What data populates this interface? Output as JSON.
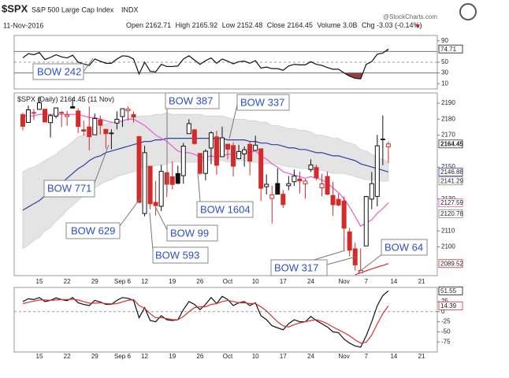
{
  "header": {
    "symbol": "$SPX",
    "name": "S&P 500 Large Cap Index",
    "exchange": "INDX",
    "source": "@StockCharts.com",
    "date": "11-Nov-2016",
    "open_label": "Open",
    "high_label": "High",
    "low_label": "Low",
    "close_label": "Close",
    "volume_label": "Volume",
    "volume": "3.0B",
    "chg_label": "Chg",
    "chg": -3.03,
    "chg_pct": "(-0.14%)"
  },
  "annotations": [
    "BOW 242",
    "BOW 771",
    "BOW 629",
    "BOW 387",
    "BOW 337",
    "BOW 1604",
    "BOW 99",
    "BOW 593",
    "BOW 317",
    "BOW 64"
  ],
  "chart_data": [
    {
      "type": "line",
      "ylim": [
        0,
        100
      ],
      "yticks": [
        10,
        30,
        50,
        90
      ],
      "ref_lines": [
        30,
        70
      ],
      "dashed_lines": [
        50
      ],
      "over_color": "#55a055",
      "under_color": "#8b2a2a",
      "series": [
        {
          "color": "#111111",
          "end_label": true,
          "values": [
            58,
            66,
            64,
            68,
            55,
            59,
            64,
            60,
            58,
            63,
            50,
            47,
            44,
            56,
            52,
            48,
            48,
            56,
            62,
            61,
            56,
            28,
            50,
            33,
            32,
            46,
            42,
            42,
            43,
            56,
            62,
            54,
            46,
            53,
            58,
            48,
            56,
            52,
            47,
            51,
            52,
            48,
            53,
            39,
            41,
            38,
            38,
            35,
            43,
            46,
            45,
            45,
            51,
            46,
            44,
            40,
            37,
            37,
            30,
            24,
            20,
            19,
            46,
            51,
            65,
            67,
            74.71
          ]
        }
      ]
    },
    {
      "type": "candlestick",
      "legend_symbol": "$SPX (Daily)",
      "legend_date": "(11 Nov)",
      "ylim": [
        2082,
        2196.4
      ],
      "yticks": [
        2100,
        2110,
        2130,
        2150,
        2170,
        2180,
        2190
      ],
      "up_color": "#111111",
      "down_color": "#d42a2a",
      "levels": [
        2120.78
      ],
      "categories": [
        null,
        null,
        null,
        "15",
        null,
        null,
        null,
        null,
        "22",
        null,
        null,
        null,
        null,
        "29",
        null,
        null,
        null,
        null,
        "Sep 6",
        null,
        null,
        null,
        "12",
        null,
        null,
        null,
        null,
        "19",
        null,
        null,
        null,
        null,
        "26",
        null,
        null,
        null,
        null,
        "Oct",
        null,
        null,
        null,
        null,
        "10",
        null,
        null,
        null,
        null,
        "17",
        null,
        null,
        null,
        null,
        "24",
        null,
        null,
        null,
        null,
        null,
        "Nov",
        null,
        null,
        null,
        "7",
        null,
        null,
        null,
        null,
        "14",
        null,
        null,
        null,
        null,
        "21",
        null,
        null
      ],
      "open": [
        2182.8,
        2177.9,
        2183.7,
        2186.1,
        2186.2,
        2177.8,
        2181.9,
        2184.2,
        2181.6,
        2187.8,
        2185.1,
        2173.3,
        2175.1,
        2170.2,
        2179.5,
        2173.6,
        2171.3,
        2177.5,
        2181.6,
        2185.2,
        2182.8,
        2169.1,
        2120.9,
        2150.5,
        2127.9,
        2125.4,
        2146.5,
        2143.9,
        2145.9,
        2144.6,
        2170.9,
        2173.3,
        2158.5,
        2146,
        2161.9,
        2168.9,
        2156.5,
        2164.3,
        2163.4,
        2155.2,
        2158.2,
        2164.2,
        2160.4,
        2161.4,
        2137.7,
        2130.3,
        2139.7,
        2132.95,
        2138.3,
        2140.8,
        2142.5,
        2139.4,
        2148.5,
        2149.7,
        2136.97,
        2144.1,
        2132.2,
        2129.8,
        2128.7,
        2109.4,
        2098.8,
        2083.8,
        2100.6,
        2129.9,
        2131.6,
        2167.5,
        2162.71,
        null,
        null,
        null,
        null,
        null,
        null,
        null,
        null
      ],
      "high": [
        2184,
        2188.5,
        2186.3,
        2193.8,
        2186.2,
        2183.1,
        2187,
        2185,
        2185.2,
        2193.4,
        2186.7,
        2179,
        2187.9,
        2183.5,
        2182.3,
        2173.8,
        2173.6,
        2184.9,
        2186.6,
        2187.9,
        2184.9,
        2169.1,
        2163.3,
        2150.5,
        2141.3,
        2151.3,
        2146.5,
        2153.6,
        2150.8,
        2165.1,
        2180,
        2173.8,
        2158.5,
        2161.1,
        2172.4,
        2172.7,
        2175.3,
        2164.4,
        2165.5,
        2163.9,
        2162.9,
        2165.9,
        2169.6,
        2161.6,
        2145.4,
        2138.2,
        2149.2,
        2135.6,
        2144.4,
        2148.4,
        2147.2,
        2142.6,
        2154.8,
        2151.4,
        2145.7,
        2147.1,
        2140.7,
        2133.3,
        2131.5,
        2111.8,
        2102.6,
        2099.1,
        2132,
        2146.9,
        2170.1,
        2182.3,
        2165.92,
        null,
        null,
        null,
        null,
        null,
        null,
        null,
        null
      ],
      "low": [
        2173,
        2177.9,
        2179.4,
        2186.1,
        2178.1,
        2168.5,
        2180.5,
        2175.1,
        2175.9,
        2186.8,
        2171.3,
        2169.7,
        2160.4,
        2170.2,
        2170.4,
        2161.4,
        2161.1,
        2173.6,
        2175.1,
        2179.1,
        2177.9,
        2127.8,
        2119.1,
        2123.5,
        2119.6,
        2122.4,
        2131.2,
        2135.9,
        2139.2,
        2139.6,
        2170.9,
        2164,
        2145,
        2141.6,
        2151.8,
        2145.2,
        2156.5,
        2154.8,
        2144,
        2155.2,
        2150.3,
        2144.9,
        2160.4,
        2128.8,
        2132.8,
        2114.7,
        2132.98,
        2124.4,
        2135.5,
        2138.2,
        2133.4,
        2130.1,
        2146.9,
        2141.9,
        2131.6,
        2132.5,
        2119.4,
        2125.5,
        2097.9,
        2094,
        2085.2,
        2083.8,
        2100.6,
        2123.6,
        2125.4,
        2151.2,
        2152.48,
        null,
        null,
        null,
        null,
        null,
        null,
        null,
        null
      ],
      "close": [
        2175.5,
        2185.8,
        2184.1,
        2190.2,
        2178.2,
        2182.2,
        2187,
        2183.9,
        2182.6,
        2186.9,
        2175.4,
        2172.5,
        2169,
        2180.4,
        2176.1,
        2170.9,
        2170.9,
        2179.9,
        2186.5,
        2186.2,
        2181.3,
        2127.8,
        2159,
        2127,
        2125.8,
        2147.3,
        2139.2,
        2139.1,
        2139.8,
        2163.1,
        2177.2,
        2164.7,
        2146.1,
        2159.9,
        2171.4,
        2151.1,
        2168.3,
        2161.2,
        2150.5,
        2159.7,
        2160.8,
        2153.7,
        2163.7,
        2136.7,
        2139.2,
        2132.6,
        2132.98,
        2126.5,
        2139.6,
        2144.3,
        2141.3,
        2141.2,
        2151.3,
        2143.2,
        2139.4,
        2133,
        2126.4,
        2126.2,
        2111.7,
        2097.9,
        2088.7,
        2085.2,
        2131.5,
        2139.6,
        2163.3,
        2167.48,
        2164.45,
        null,
        null,
        null,
        null,
        null,
        null,
        null,
        null
      ],
      "band": {
        "color": "#e4e4e4",
        "lower_label": true,
        "upper": [
          2147,
          2149,
          2150,
          2152,
          2154,
          2156,
          2158,
          2161,
          2163,
          2166,
          2169,
          2170,
          2173,
          2175,
          2175,
          2177,
          2178,
          2178,
          2179,
          2180,
          2181,
          2182,
          2182,
          2182,
          2183,
          2183,
          2184,
          2183,
          2183,
          2183,
          2183,
          2183,
          2183,
          2182,
          2182,
          2182,
          2182,
          2181,
          2180,
          2180,
          2180,
          2179,
          2179,
          2178,
          2178,
          2176,
          2176,
          2175,
          2174,
          2174,
          2173,
          2173,
          2172,
          2170,
          2170,
          2169,
          2168,
          2168,
          2166,
          2165,
          2164,
          2161,
          2160,
          2158,
          2156,
          2155,
          2153,
          null,
          null,
          null,
          null,
          null,
          null,
          null,
          null
        ],
        "lower": [
          2099,
          2101,
          2104,
          2106,
          2110,
          2112,
          2116,
          2119,
          2123,
          2126,
          2129,
          2132,
          2135,
          2137,
          2139,
          2141,
          2142,
          2144,
          2145,
          2146,
          2147,
          2148,
          2150,
          2150,
          2151,
          2151,
          2152,
          2153,
          2153,
          2153,
          2153,
          2153,
          2153,
          2154,
          2154,
          2154,
          2154,
          2153,
          2154,
          2154,
          2154,
          2153,
          2153,
          2152,
          2152,
          2152,
          2152,
          2151,
          2150,
          2150,
          2149,
          2149,
          2148,
          2148,
          2148,
          2147,
          2146,
          2146,
          2146,
          2145,
          2144,
          2143,
          2142,
          2142,
          2142,
          2141,
          2141.29,
          null,
          null,
          null,
          null,
          null,
          null,
          null,
          null
        ]
      },
      "series": [
        {
          "color": "#2f3fa8",
          "end_label": true,
          "values": [
            2123,
            2125,
            2127,
            2129,
            2132,
            2134,
            2137,
            2140,
            2143,
            2146,
            2149,
            2151,
            2154,
            2156,
            2157,
            2159,
            2160,
            2161,
            2162,
            2163,
            2164,
            2165,
            2166,
            2166,
            2167,
            2167,
            2168,
            2168,
            2168,
            2168,
            2168,
            2168,
            2168,
            2168,
            2168,
            2168,
            2168,
            2167,
            2167,
            2167,
            2167,
            2166,
            2166,
            2165,
            2165,
            2164,
            2164,
            2163,
            2162,
            2162,
            2161,
            2161,
            2160,
            2159,
            2159,
            2158,
            2157,
            2157,
            2156,
            2155,
            2154,
            2152,
            2151,
            2150,
            2149,
            2148,
            2146.88,
            null,
            null,
            null,
            null,
            null,
            null,
            null,
            null
          ]
        },
        {
          "color": "#e85ad6",
          "end_label": true,
          "values": [
            2182,
            2182,
            2182,
            2183,
            2183,
            2183,
            2183,
            2183,
            2183,
            2183,
            2183,
            2182,
            2181,
            2181,
            2180,
            2179,
            2178,
            2178,
            2179,
            2180,
            2180,
            2178,
            2176,
            2173,
            2170,
            2168,
            2166,
            2163,
            2160,
            2159,
            2159,
            2158,
            2156,
            2156,
            2157,
            2156,
            2157,
            2158,
            2158,
            2159,
            2160,
            2159,
            2160,
            2157,
            2155,
            2152,
            2150,
            2147,
            2146,
            2145,
            2144,
            2143,
            2144,
            2143,
            2142,
            2140,
            2137,
            2134,
            2130,
            2125,
            2119,
            2113,
            2115,
            2117,
            2121,
            2124,
            2127.59,
            null,
            null,
            null,
            null,
            null,
            null,
            null,
            null
          ]
        },
        {
          "color": "#d93030",
          "end_label": true,
          "values": [
            null,
            null,
            null,
            null,
            null,
            null,
            null,
            null,
            null,
            null,
            null,
            null,
            null,
            null,
            null,
            null,
            null,
            null,
            null,
            null,
            null,
            null,
            null,
            null,
            null,
            null,
            null,
            null,
            null,
            null,
            null,
            null,
            null,
            null,
            null,
            null,
            null,
            null,
            null,
            null,
            null,
            null,
            null,
            null,
            null,
            null,
            null,
            null,
            null,
            null,
            null,
            null,
            null,
            null,
            null,
            null,
            null,
            null,
            null,
            null,
            2082.5,
            2083.8,
            2085,
            2086.2,
            2087.3,
            2088.4,
            2089.52,
            null,
            null,
            null,
            null,
            null,
            null,
            null,
            null
          ]
        }
      ]
    },
    {
      "type": "line",
      "ylim": [
        -100,
        60
      ],
      "yticks": [
        -75,
        -50,
        -25,
        0,
        25
      ],
      "dashed_lines": [
        0
      ],
      "categories": [
        null,
        null,
        null,
        "15",
        null,
        null,
        null,
        null,
        "22",
        null,
        null,
        null,
        null,
        "29",
        null,
        null,
        null,
        null,
        "Sep 6",
        null,
        null,
        null,
        "12",
        null,
        null,
        null,
        null,
        "19",
        null,
        null,
        null,
        null,
        "26",
        null,
        null,
        null,
        null,
        "Oct",
        null,
        null,
        null,
        null,
        "10",
        null,
        null,
        null,
        null,
        "17",
        null,
        null,
        null,
        null,
        "24",
        null,
        null,
        null,
        null,
        null,
        "Nov",
        null,
        null,
        null,
        "7",
        null,
        null,
        null,
        null,
        "14",
        null,
        null,
        null,
        null,
        "21",
        null,
        null
      ],
      "series": [
        {
          "color": "#111111",
          "end_label": true,
          "values": [
            25,
            32,
            30,
            35,
            25,
            28,
            34,
            30,
            27,
            35,
            22,
            18,
            15,
            28,
            24,
            18,
            18,
            28,
            35,
            33,
            28,
            -15,
            10,
            -22,
            -25,
            -10,
            -20,
            -22,
            -20,
            5,
            25,
            18,
            5,
            18,
            35,
            20,
            38,
            30,
            15,
            22,
            25,
            15,
            22,
            -10,
            -20,
            -35,
            -40,
            -45,
            -30,
            -20,
            -25,
            -25,
            -12,
            -22,
            -30,
            -38,
            -50,
            -52,
            -68,
            -78,
            -85,
            -88,
            -60,
            -25,
            15,
            40,
            51.55,
            null,
            null,
            null,
            null,
            null,
            null,
            null,
            null
          ]
        },
        {
          "color": "#d93030",
          "end_label": true,
          "values": [
            20,
            23,
            26,
            29,
            29,
            28,
            29,
            30,
            30,
            31,
            29,
            25,
            21,
            21,
            22,
            20,
            19,
            20,
            24,
            28,
            30,
            15,
            8,
            -5,
            -15,
            -15,
            -17,
            -20,
            -20,
            -12,
            0,
            10,
            12,
            12,
            18,
            20,
            25,
            28,
            25,
            22,
            22,
            20,
            20,
            12,
            2,
            -12,
            -25,
            -35,
            -38,
            -32,
            -28,
            -25,
            -22,
            -20,
            -24,
            -30,
            -38,
            -45,
            -52,
            -60,
            -70,
            -78,
            -76,
            -58,
            -30,
            -5,
            14.39,
            null,
            null,
            null,
            null,
            null,
            null,
            null,
            null
          ]
        }
      ]
    }
  ]
}
